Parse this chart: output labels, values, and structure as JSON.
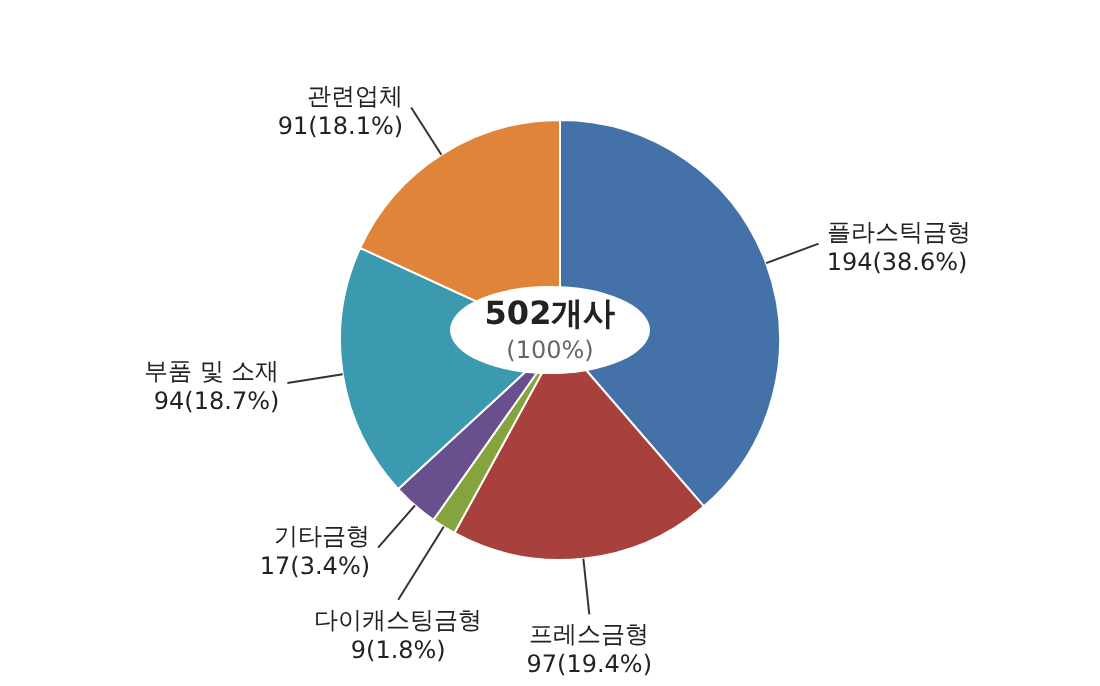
{
  "chart_data": {
    "type": "pie",
    "categories": [
      "플라스틱금형",
      "프레스금형",
      "다이캐스팅금형",
      "기타금형",
      "부품 및 소재",
      "관련업체"
    ],
    "values": [
      194,
      97,
      9,
      17,
      94,
      91
    ],
    "colors": [
      "#4472a8",
      "#a8403c",
      "#86a43e",
      "#6a4f8e",
      "#3b9ab0",
      "#e0843a"
    ],
    "value_labels": [
      "194(38.6%)",
      "97(19.4%)",
      "9(1.8%)",
      "17(3.4%)",
      "94(18.7%)",
      "91(18.1%)"
    ],
    "annotations": [
      "502개사",
      "(100%)"
    ],
    "legend": false
  }
}
